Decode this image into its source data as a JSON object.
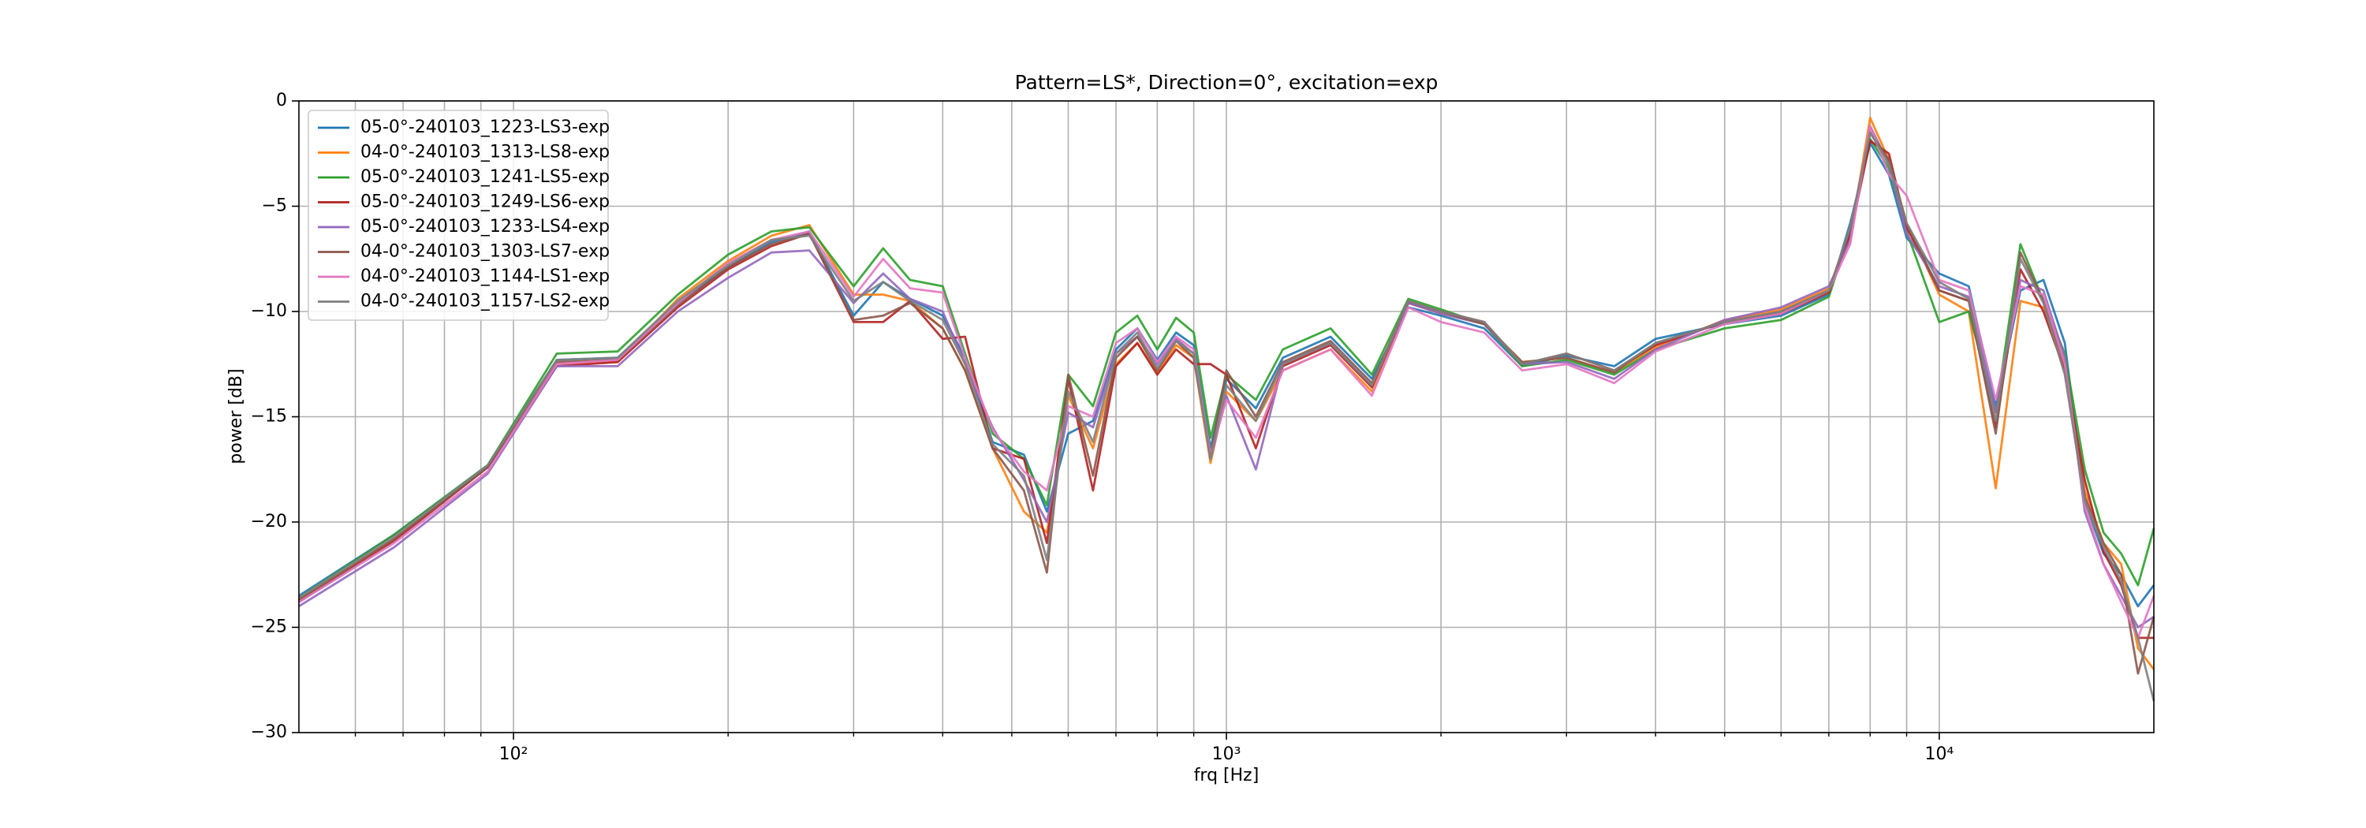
{
  "chart_data": {
    "type": "line",
    "title": "Pattern=LS*, Direction=0°, excitation=exp",
    "xlabel": "frq [Hz]",
    "ylabel": "power [dB]",
    "xscale": "log",
    "xlim": [
      50,
      20000
    ],
    "xticks": [
      {
        "value": 100,
        "label": "10²"
      },
      {
        "value": 1000,
        "label": "10³"
      },
      {
        "value": 10000,
        "label": "10⁴"
      }
    ],
    "xminorticks": [
      60,
      70,
      80,
      90,
      200,
      300,
      400,
      500,
      600,
      700,
      800,
      900,
      2000,
      3000,
      4000,
      5000,
      6000,
      7000,
      8000,
      9000
    ],
    "ylim": [
      -30,
      0
    ],
    "yticks": [
      {
        "value": -30,
        "label": "−30"
      },
      {
        "value": -25,
        "label": "−25"
      },
      {
        "value": -20,
        "label": "−20"
      },
      {
        "value": -15,
        "label": "−15"
      },
      {
        "value": -10,
        "label": "−10"
      },
      {
        "value": -5,
        "label": "−5"
      },
      0
    ],
    "grid": true,
    "legend": "upper left",
    "x": [
      50,
      68,
      92,
      115,
      140,
      170,
      200,
      230,
      260,
      300,
      330,
      360,
      400,
      430,
      470,
      520,
      560,
      600,
      650,
      700,
      750,
      800,
      850,
      900,
      950,
      1000,
      1100,
      1200,
      1400,
      1600,
      1800,
      2000,
      2300,
      2600,
      3000,
      3500,
      4000,
      5000,
      6000,
      7000,
      7500,
      8000,
      8500,
      9000,
      10000,
      11000,
      12000,
      13000,
      14000,
      15000,
      16000,
      17000,
      18000,
      19000,
      20000
    ],
    "series": [
      {
        "name": "05-0°-240103_1223-LS3-exp",
        "color": "#1f77b4",
        "values": [
          -23.5,
          -20.6,
          -17.3,
          -12.3,
          -12.2,
          -9.6,
          -7.9,
          -6.7,
          -6.2,
          -10.2,
          -8.6,
          -9.4,
          -10.2,
          -12.2,
          -16.2,
          -16.8,
          -19.5,
          -15.8,
          -15.2,
          -11.8,
          -10.8,
          -12.3,
          -11,
          -11.6,
          -16.5,
          -13.2,
          -14.6,
          -12.2,
          -11.2,
          -13.2,
          -9.8,
          -10.2,
          -10.8,
          -12.6,
          -12.1,
          -12.6,
          -11.3,
          -10.6,
          -10.2,
          -9.2,
          -5.8,
          -2,
          -3.5,
          -6.5,
          -8.2,
          -8.8,
          -14.5,
          -9,
          -8.5,
          -11.5,
          -19,
          -21.5,
          -22.5,
          -24,
          -23
        ]
      },
      {
        "name": "04-0°-240103_1313-LS8-exp",
        "color": "#ff7f0e",
        "values": [
          -23.7,
          -20.8,
          -17.4,
          -12.5,
          -12.4,
          -9.4,
          -7.6,
          -6.4,
          -5.9,
          -9.2,
          -9.2,
          -9.5,
          -10.8,
          -12.8,
          -16.5,
          -19.5,
          -20.5,
          -14,
          -16.5,
          -12.5,
          -11.5,
          -12.9,
          -11.6,
          -12.2,
          -17.2,
          -13.8,
          -15.2,
          -12.8,
          -11.8,
          -13.8,
          -9.6,
          -10.1,
          -10.6,
          -12.4,
          -12.2,
          -12.9,
          -11.7,
          -10.4,
          -9.9,
          -8.9,
          -6.5,
          -0.8,
          -2.8,
          -5.8,
          -9.2,
          -10,
          -18.4,
          -9.5,
          -9.8,
          -12.5,
          -18.5,
          -21,
          -22,
          -26,
          -27
        ]
      },
      {
        "name": "05-0°-240103_1241-LS5-exp",
        "color": "#2ca02c",
        "values": [
          -23.6,
          -20.6,
          -17.3,
          -12,
          -11.9,
          -9.2,
          -7.3,
          -6.2,
          -6,
          -8.8,
          -7,
          -8.5,
          -8.8,
          -12,
          -15.8,
          -17,
          -19.2,
          -13,
          -14.5,
          -11,
          -10.2,
          -11.8,
          -10.3,
          -11,
          -16,
          -13,
          -14.2,
          -11.8,
          -10.8,
          -13,
          -9.4,
          -9.9,
          -10.6,
          -12.6,
          -12.3,
          -13,
          -11.8,
          -10.8,
          -10.4,
          -9.3,
          -6.2,
          -1.8,
          -3.2,
          -6.2,
          -10.5,
          -10,
          -14.8,
          -6.8,
          -9.5,
          -12,
          -17.5,
          -20.5,
          -21.5,
          -23,
          -20.3
        ]
      },
      {
        "name": "05-0°-240103_1249-LS6-exp",
        "color": "#b22222",
        "values": [
          -23.8,
          -20.9,
          -17.4,
          -12.6,
          -12.4,
          -9.8,
          -8,
          -6.9,
          -6.3,
          -10.5,
          -10.5,
          -9.5,
          -11.3,
          -11.2,
          -16.5,
          -17,
          -21,
          -13.2,
          -18.5,
          -12.6,
          -11.5,
          -13,
          -11.8,
          -12.5,
          -12.5,
          -13,
          -16.5,
          -12.6,
          -11.6,
          -13.6,
          -9.6,
          -10,
          -10.5,
          -12.5,
          -12,
          -12.8,
          -11.6,
          -10.5,
          -10.1,
          -9.1,
          -6.4,
          -1.9,
          -2.5,
          -6,
          -9,
          -9.5,
          -15.5,
          -8,
          -10,
          -12.8,
          -18,
          -21.4,
          -23,
          -25.5,
          -25.5
        ]
      },
      {
        "name": "05-0°-240103_1233-LS4-exp",
        "color": "#9467bd",
        "values": [
          -24,
          -21.2,
          -17.7,
          -12.6,
          -12.6,
          -10,
          -8.4,
          -7.2,
          -7.1,
          -9.6,
          -8.2,
          -9.4,
          -10,
          -12.5,
          -15.5,
          -18,
          -20,
          -14.8,
          -15.5,
          -12,
          -11.2,
          -12.5,
          -11.3,
          -12,
          -17,
          -14,
          -17.5,
          -12.5,
          -11.5,
          -13.5,
          -9.6,
          -10.1,
          -10.6,
          -12.5,
          -12.4,
          -13.2,
          -11.8,
          -10.4,
          -9.8,
          -8.8,
          -6.6,
          -1.2,
          -3,
          -6.3,
          -8.8,
          -9.3,
          -14.8,
          -8.5,
          -9,
          -12.2,
          -19.5,
          -22,
          -23.5,
          -25,
          -24.5
        ]
      },
      {
        "name": "04-0°-240103_1303-LS7-exp",
        "color": "#8c564b",
        "values": [
          -23.7,
          -20.8,
          -17.4,
          -12.4,
          -12.3,
          -9.7,
          -7.9,
          -6.8,
          -6.3,
          -10.4,
          -10.2,
          -9.6,
          -10.8,
          -12.8,
          -16.5,
          -18.5,
          -22.4,
          -13,
          -17.8,
          -12.2,
          -11.2,
          -12.8,
          -11.4,
          -12.2,
          -16.8,
          -12.8,
          -15,
          -12.4,
          -11.4,
          -13.4,
          -9.5,
          -10,
          -10.6,
          -12.4,
          -12.2,
          -12.9,
          -11.5,
          -10.5,
          -10,
          -9,
          -6.1,
          -1.5,
          -2.8,
          -5.8,
          -9,
          -9.5,
          -15.8,
          -7.2,
          -9.5,
          -12.5,
          -18.8,
          -21,
          -22.5,
          -27.2,
          -24.5
        ]
      },
      {
        "name": "04-0°-240103_1144-LS1-exp",
        "color": "#e377c2",
        "values": [
          -23.8,
          -21,
          -17.6,
          -12.5,
          -12.3,
          -9.6,
          -7.7,
          -6.6,
          -6.2,
          -9.3,
          -7.5,
          -8.9,
          -9.1,
          -12.2,
          -15.6,
          -17.6,
          -18.5,
          -14.5,
          -15,
          -11.5,
          -10.8,
          -12.4,
          -11.2,
          -11.8,
          -16.8,
          -14.2,
          -16,
          -12.8,
          -11.8,
          -14,
          -9.8,
          -10.5,
          -11,
          -12.8,
          -12.5,
          -13.4,
          -11.9,
          -10.6,
          -10.1,
          -9,
          -6.8,
          -1.2,
          -3.5,
          -4.5,
          -8.5,
          -9,
          -14.2,
          -8.8,
          -9.2,
          -12.5,
          -19.2,
          -22,
          -23.8,
          -25.5,
          -23.5
        ]
      },
      {
        "name": "04-0°-240103_1157-LS2-exp",
        "color": "#7f7f7f",
        "values": [
          -23.6,
          -20.7,
          -17.3,
          -12.3,
          -12.2,
          -9.5,
          -7.8,
          -6.6,
          -6.4,
          -9.5,
          -8.6,
          -9.5,
          -10.4,
          -12.5,
          -16.3,
          -17.8,
          -21.8,
          -13.8,
          -16.2,
          -12,
          -11,
          -12.7,
          -11.4,
          -12,
          -17,
          -13.5,
          -15.2,
          -12.5,
          -11.5,
          -13.5,
          -9.5,
          -10,
          -10.5,
          -12.5,
          -12,
          -12.8,
          -11.5,
          -10.5,
          -10,
          -9,
          -6,
          -1.5,
          -3,
          -5.8,
          -8.6,
          -9.4,
          -15.2,
          -7.5,
          -9.6,
          -13,
          -19,
          -21.2,
          -22.8,
          -25.5,
          -28.5
        ]
      }
    ]
  }
}
